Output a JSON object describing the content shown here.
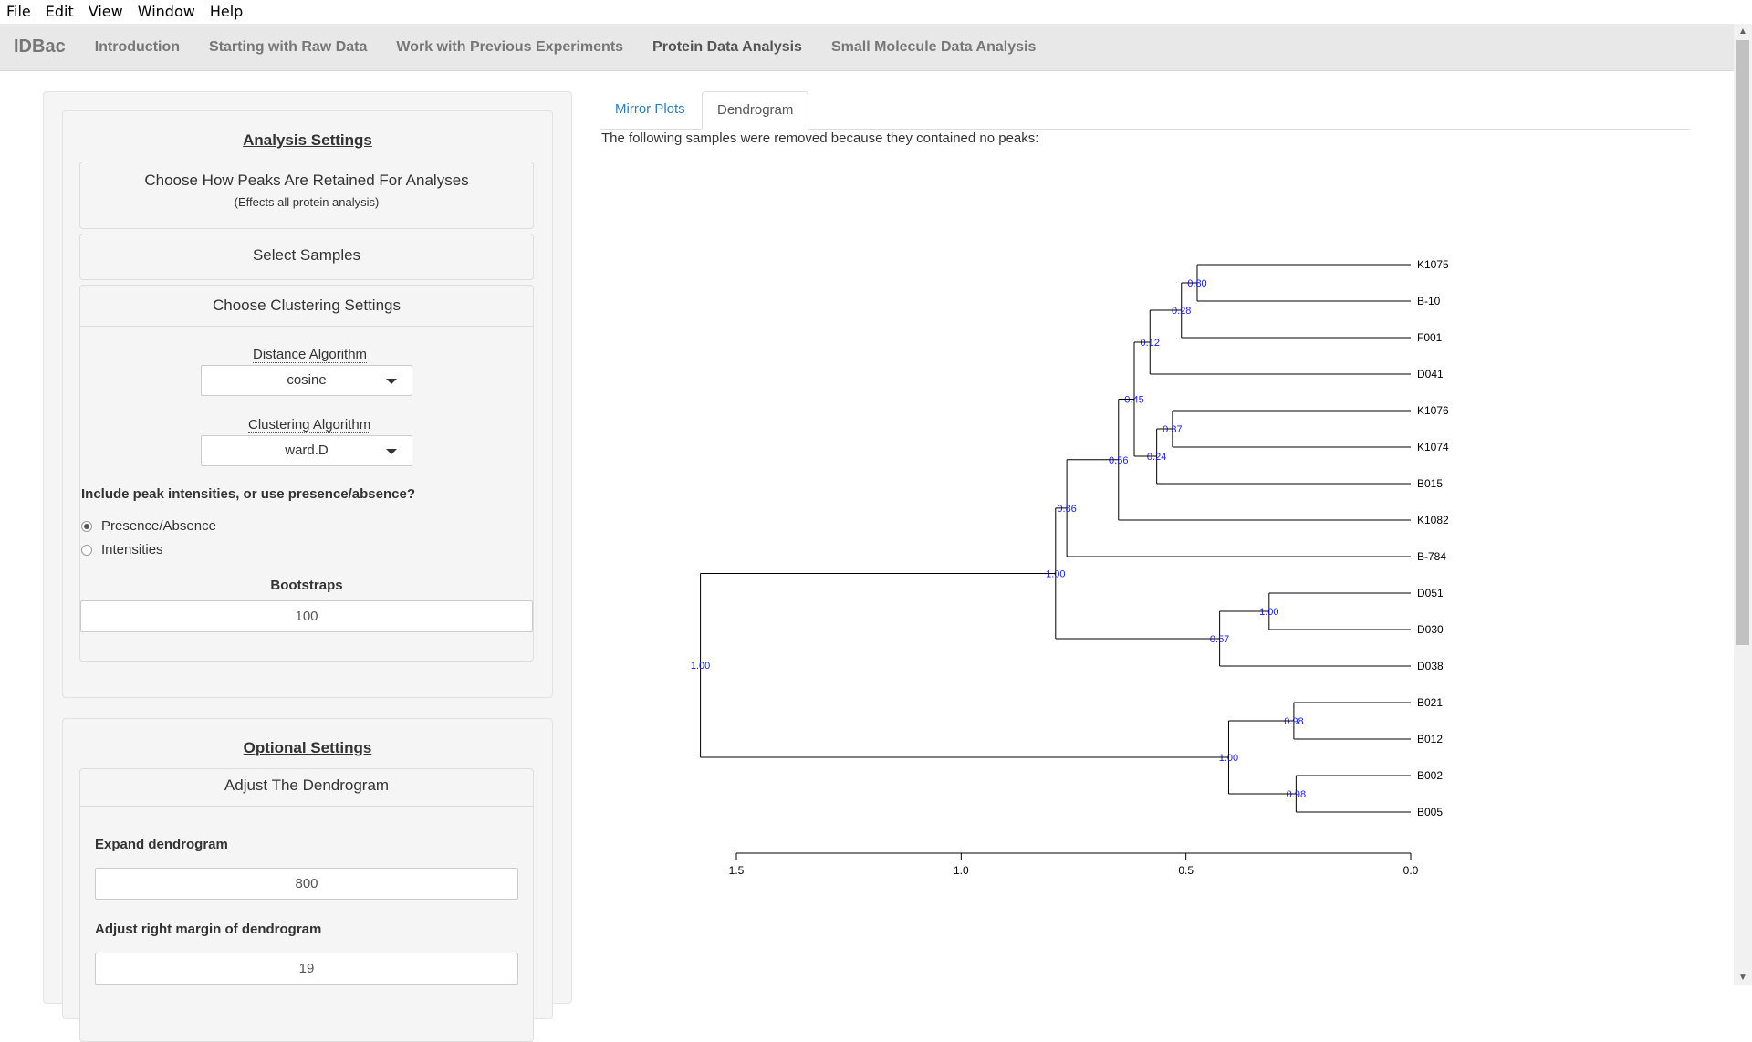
{
  "menubar": {
    "items": [
      "File",
      "Edit",
      "View",
      "Window",
      "Help"
    ]
  },
  "navbar": {
    "brand": "IDBac",
    "items": [
      "Introduction",
      "Starting with Raw Data",
      "Work with Previous Experiments",
      "Protein Data Analysis",
      "Small Molecule Data Analysis"
    ],
    "active": "Protein Data Analysis"
  },
  "analysis_settings": {
    "title": "Analysis Settings",
    "peaks_box": {
      "title": "Choose How Peaks Are Retained For Analyses",
      "subtitle": "(Effects all protein analysis)"
    },
    "samples_box": {
      "title": "Select Samples"
    },
    "clustering_box": {
      "title": "Choose Clustering Settings",
      "distance_label": "Distance Algorithm",
      "distance_value": "cosine",
      "clustering_label": "Clustering Algorithm",
      "clustering_value": "ward.D",
      "intensity_question": "Include peak intensities, or use presence/absence?",
      "options": [
        "Presence/Absence",
        "Intensities"
      ],
      "selected_option": "Presence/Absence",
      "bootstraps_label": "Bootstraps",
      "bootstraps_value": "100"
    }
  },
  "optional_settings": {
    "title": "Optional Settings",
    "dendro_box": {
      "title": "Adjust The Dendrogram"
    },
    "expand_label": "Expand dendrogram",
    "expand_value": "800",
    "margin_label": "Adjust right margin of dendrogram",
    "margin_value": "19"
  },
  "tabs": {
    "items": [
      "Mirror Plots",
      "Dendrogram"
    ],
    "active": "Dendrogram"
  },
  "notice": "The following samples were removed because they contained no peaks:",
  "colors": {
    "bootstrap_label": "#1a1aff",
    "tree_line": "#000000",
    "link": "#337ab7"
  },
  "chart_data": {
    "type": "dendrogram",
    "orientation": "horizontal",
    "leaves": [
      "K1075",
      "B-10",
      "F001",
      "D041",
      "K1076",
      "K1074",
      "B015",
      "K1082",
      "B-784",
      "D051",
      "D030",
      "D038",
      "B021",
      "B012",
      "B002",
      "B005"
    ],
    "x_axis": {
      "ticks": [
        "1.5",
        "1.0",
        "0.5",
        "0.0"
      ],
      "range": [
        1.5,
        0.0
      ]
    },
    "merges": [
      {
        "id": "n1",
        "children": [
          "K1075",
          "B-10"
        ],
        "height": 0.475,
        "bootstrap": "0.80"
      },
      {
        "id": "n2",
        "children": [
          "n1",
          "F001"
        ],
        "height": 0.51,
        "bootstrap": "0.28"
      },
      {
        "id": "n3",
        "children": [
          "n2",
          "D041"
        ],
        "height": 0.58,
        "bootstrap": "0.12"
      },
      {
        "id": "n4",
        "children": [
          "K1076",
          "K1074"
        ],
        "height": 0.53,
        "bootstrap": "0.37"
      },
      {
        "id": "n5",
        "children": [
          "n4",
          "B015"
        ],
        "height": 0.565,
        "bootstrap": "0.24"
      },
      {
        "id": "n6",
        "children": [
          "n3",
          "n5"
        ],
        "height": 0.615,
        "bootstrap": "0.45"
      },
      {
        "id": "n7",
        "children": [
          "n6",
          "K1082"
        ],
        "height": 0.65,
        "bootstrap": "0.56"
      },
      {
        "id": "n8",
        "children": [
          "n7",
          "B-784"
        ],
        "height": 0.765,
        "bootstrap": "0.86"
      },
      {
        "id": "n9",
        "children": [
          "D051",
          "D030"
        ],
        "height": 0.315,
        "bootstrap": "1.00"
      },
      {
        "id": "n10",
        "children": [
          "n9",
          "D038"
        ],
        "height": 0.425,
        "bootstrap": "0.57"
      },
      {
        "id": "n11",
        "children": [
          "n8",
          "n10"
        ],
        "height": 0.79,
        "bootstrap": "1.00"
      },
      {
        "id": "n12",
        "children": [
          "B021",
          "B012"
        ],
        "height": 0.26,
        "bootstrap": "0.98"
      },
      {
        "id": "n13",
        "children": [
          "B002",
          "B005"
        ],
        "height": 0.255,
        "bootstrap": "0.98"
      },
      {
        "id": "n14",
        "children": [
          "n12",
          "n13"
        ],
        "height": 0.405,
        "bootstrap": "1.00"
      },
      {
        "id": "n15",
        "children": [
          "n11",
          "n14"
        ],
        "height": 1.58,
        "bootstrap": "1.00"
      }
    ]
  }
}
